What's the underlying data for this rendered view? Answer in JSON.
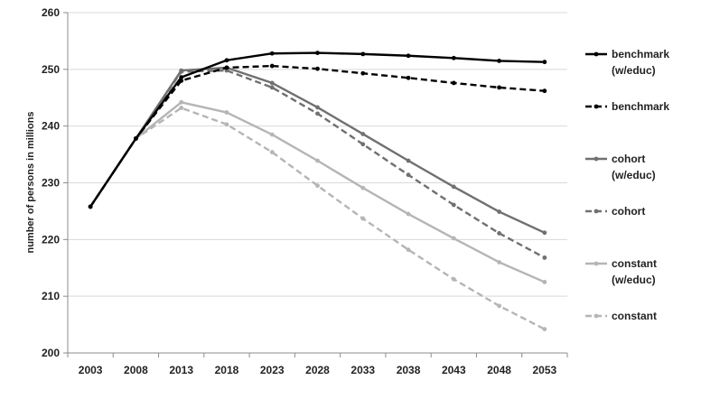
{
  "chart_data": {
    "type": "line",
    "title": "",
    "xlabel": "",
    "ylabel": "number of persons in millions",
    "ylim": [
      200,
      260
    ],
    "yticks": [
      200,
      210,
      220,
      230,
      240,
      250,
      260
    ],
    "x": [
      "2003",
      "2008",
      "2013",
      "2018",
      "2023",
      "2028",
      "2033",
      "2038",
      "2043",
      "2048",
      "2053"
    ],
    "grid": "horizontal",
    "legend": "right",
    "series": [
      {
        "name": "benchmark (w/educ)",
        "name_lines": [
          "benchmark",
          "(w/educ)"
        ],
        "color": "#000000",
        "dashed": false,
        "values": [
          225.8,
          237.8,
          248.6,
          251.6,
          252.8,
          252.9,
          252.7,
          252.4,
          252.0,
          251.5,
          251.3
        ]
      },
      {
        "name": "benchmark",
        "name_lines": [
          "benchmark"
        ],
        "color": "#000000",
        "dashed": true,
        "values": [
          225.8,
          237.8,
          248.0,
          250.3,
          250.6,
          250.1,
          249.3,
          248.5,
          247.6,
          246.8,
          246.2
        ]
      },
      {
        "name": "cohort (w/educ)",
        "name_lines": [
          "cohort",
          "(w/educ)"
        ],
        "color": "#707070",
        "dashed": false,
        "values": [
          225.8,
          237.8,
          249.8,
          250.3,
          247.6,
          243.3,
          238.6,
          233.9,
          229.3,
          224.9,
          221.2
        ]
      },
      {
        "name": "cohort",
        "name_lines": [
          "cohort"
        ],
        "color": "#707070",
        "dashed": true,
        "values": [
          225.8,
          237.8,
          249.6,
          249.8,
          246.8,
          242.2,
          236.8,
          231.4,
          226.1,
          221.1,
          216.8
        ]
      },
      {
        "name": "constant (w/educ)",
        "name_lines": [
          "constant",
          "(w/educ)"
        ],
        "color": "#b5b5b5",
        "dashed": false,
        "values": [
          225.8,
          237.8,
          244.2,
          242.4,
          238.5,
          233.9,
          229.1,
          224.5,
          220.2,
          216.0,
          212.5
        ]
      },
      {
        "name": "constant",
        "name_lines": [
          "constant"
        ],
        "color": "#b5b5b5",
        "dashed": true,
        "values": [
          225.8,
          237.8,
          243.2,
          240.3,
          235.4,
          229.5,
          223.7,
          218.2,
          213.0,
          208.3,
          204.2
        ]
      }
    ]
  }
}
